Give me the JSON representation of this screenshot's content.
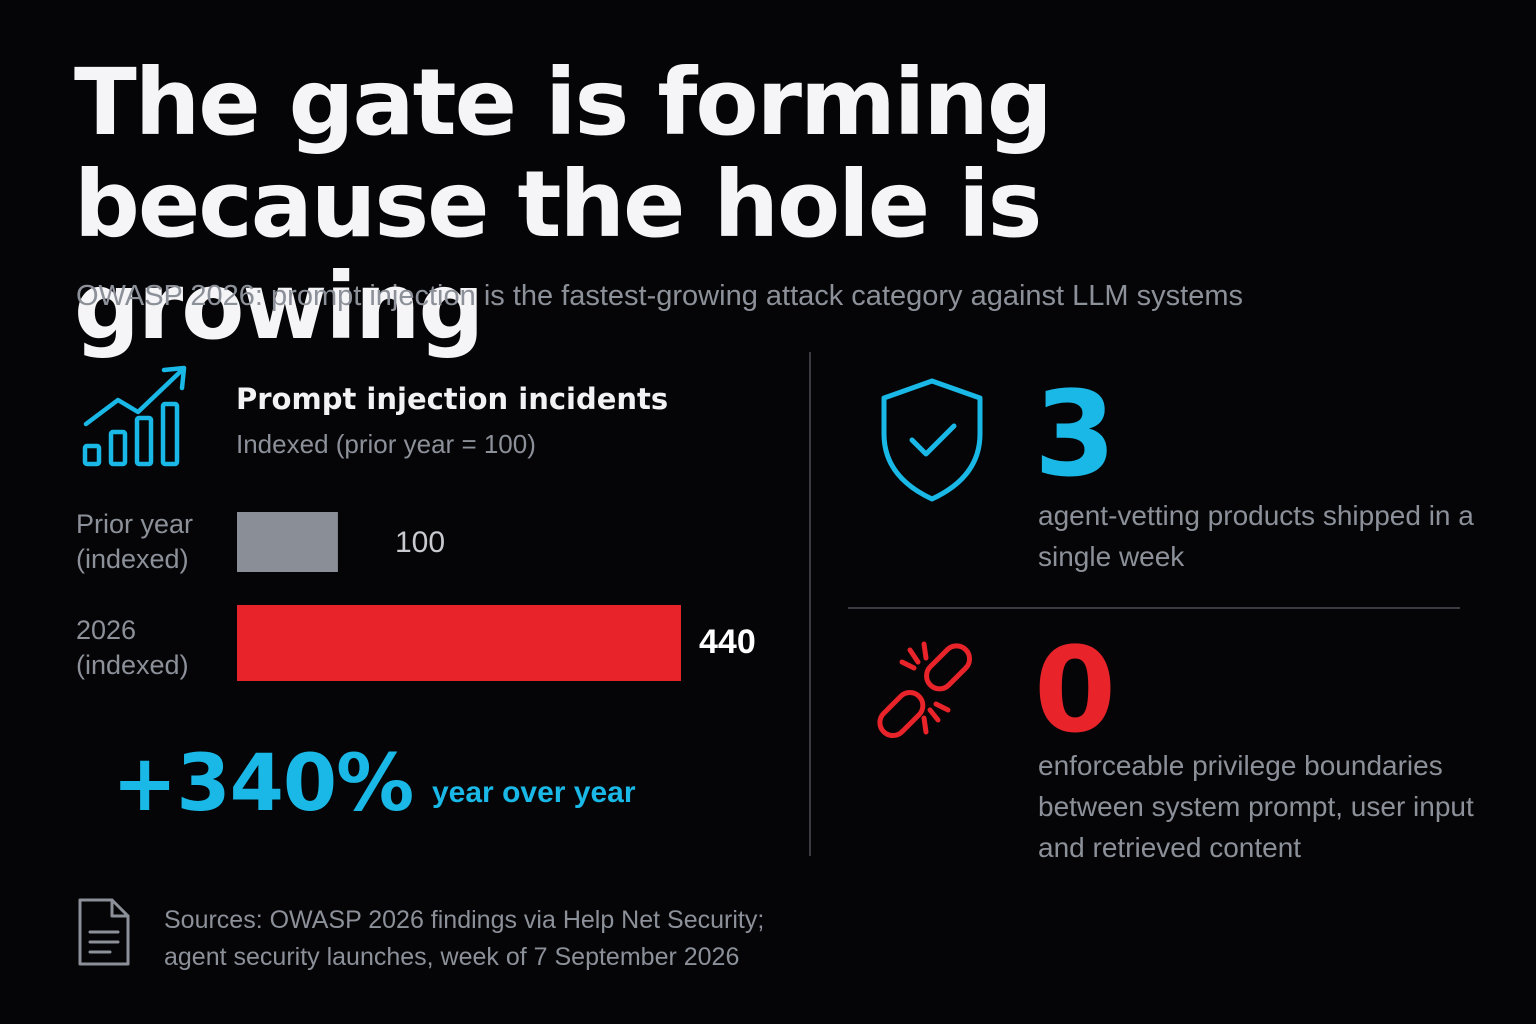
{
  "header": {
    "title_line1": "The gate is forming",
    "title_line2": "because the hole is growing",
    "subtitle": "OWASP 2026: prompt injection is the fastest-growing attack category against LLM systems"
  },
  "colors": {
    "background": "#050507",
    "accent_blue": "#19b8e6",
    "accent_red": "#e8232a",
    "bar_grey": "#8a8e97",
    "text_muted": "#8c9099"
  },
  "icons": {
    "chart": "growth-chart-icon",
    "shield": "shield-check-icon",
    "chain": "broken-chain-icon",
    "document": "document-icon"
  },
  "chart_data": {
    "type": "bar",
    "orientation": "horizontal",
    "title": "Prompt injection incidents",
    "subtitle": "Indexed (prior year = 100)",
    "categories": [
      "Prior year\n(indexed)",
      "2026\n(indexed)"
    ],
    "values": [
      100,
      440
    ],
    "value_labels": [
      "100",
      "440"
    ],
    "bar_colors": [
      "#8a8e97",
      "#e8232a"
    ],
    "xlim": [
      0,
      440
    ],
    "grid": false,
    "legend": "none"
  },
  "highlight": {
    "value": "+340%",
    "caption": "year over year"
  },
  "stats": [
    {
      "number": "3",
      "description": "agent-vetting products shipped in a single week"
    },
    {
      "number": "0",
      "description": "enforceable privilege boundaries between system prompt, user input and retrieved content"
    }
  ],
  "footer": {
    "sources_line1": "Sources: OWASP 2026 findings via Help Net Security;",
    "sources_line2": "agent security launches, week of 7 September 2026"
  }
}
